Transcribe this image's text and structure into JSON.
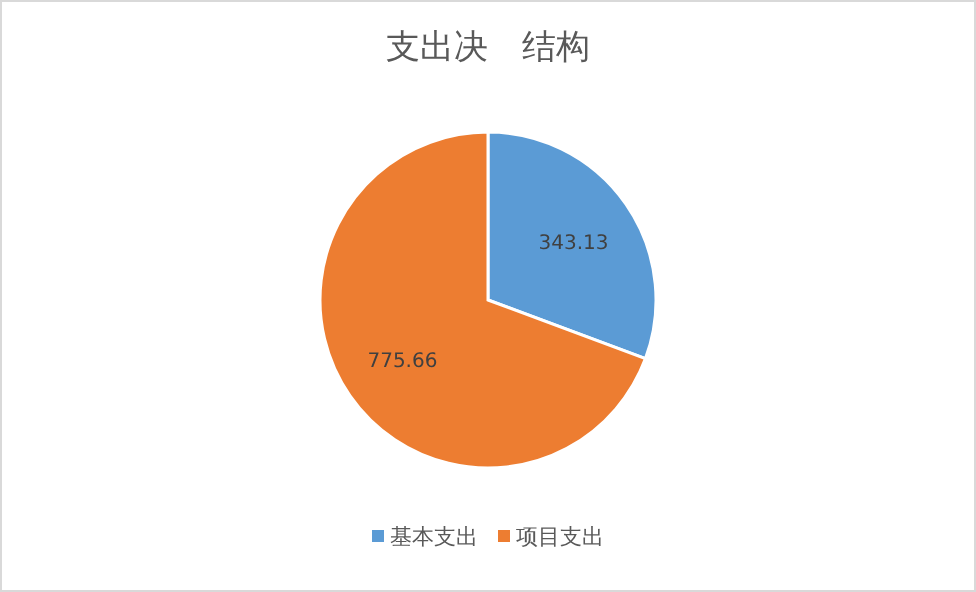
{
  "chart_data": {
    "type": "pie",
    "title": "支出决　结构",
    "categories": [
      "基本支出",
      "项目支出"
    ],
    "values": [
      343.13,
      775.66
    ],
    "colors": [
      "#5b9bd5",
      "#ed7d31"
    ],
    "data_labels": true,
    "legend": "bottom"
  }
}
